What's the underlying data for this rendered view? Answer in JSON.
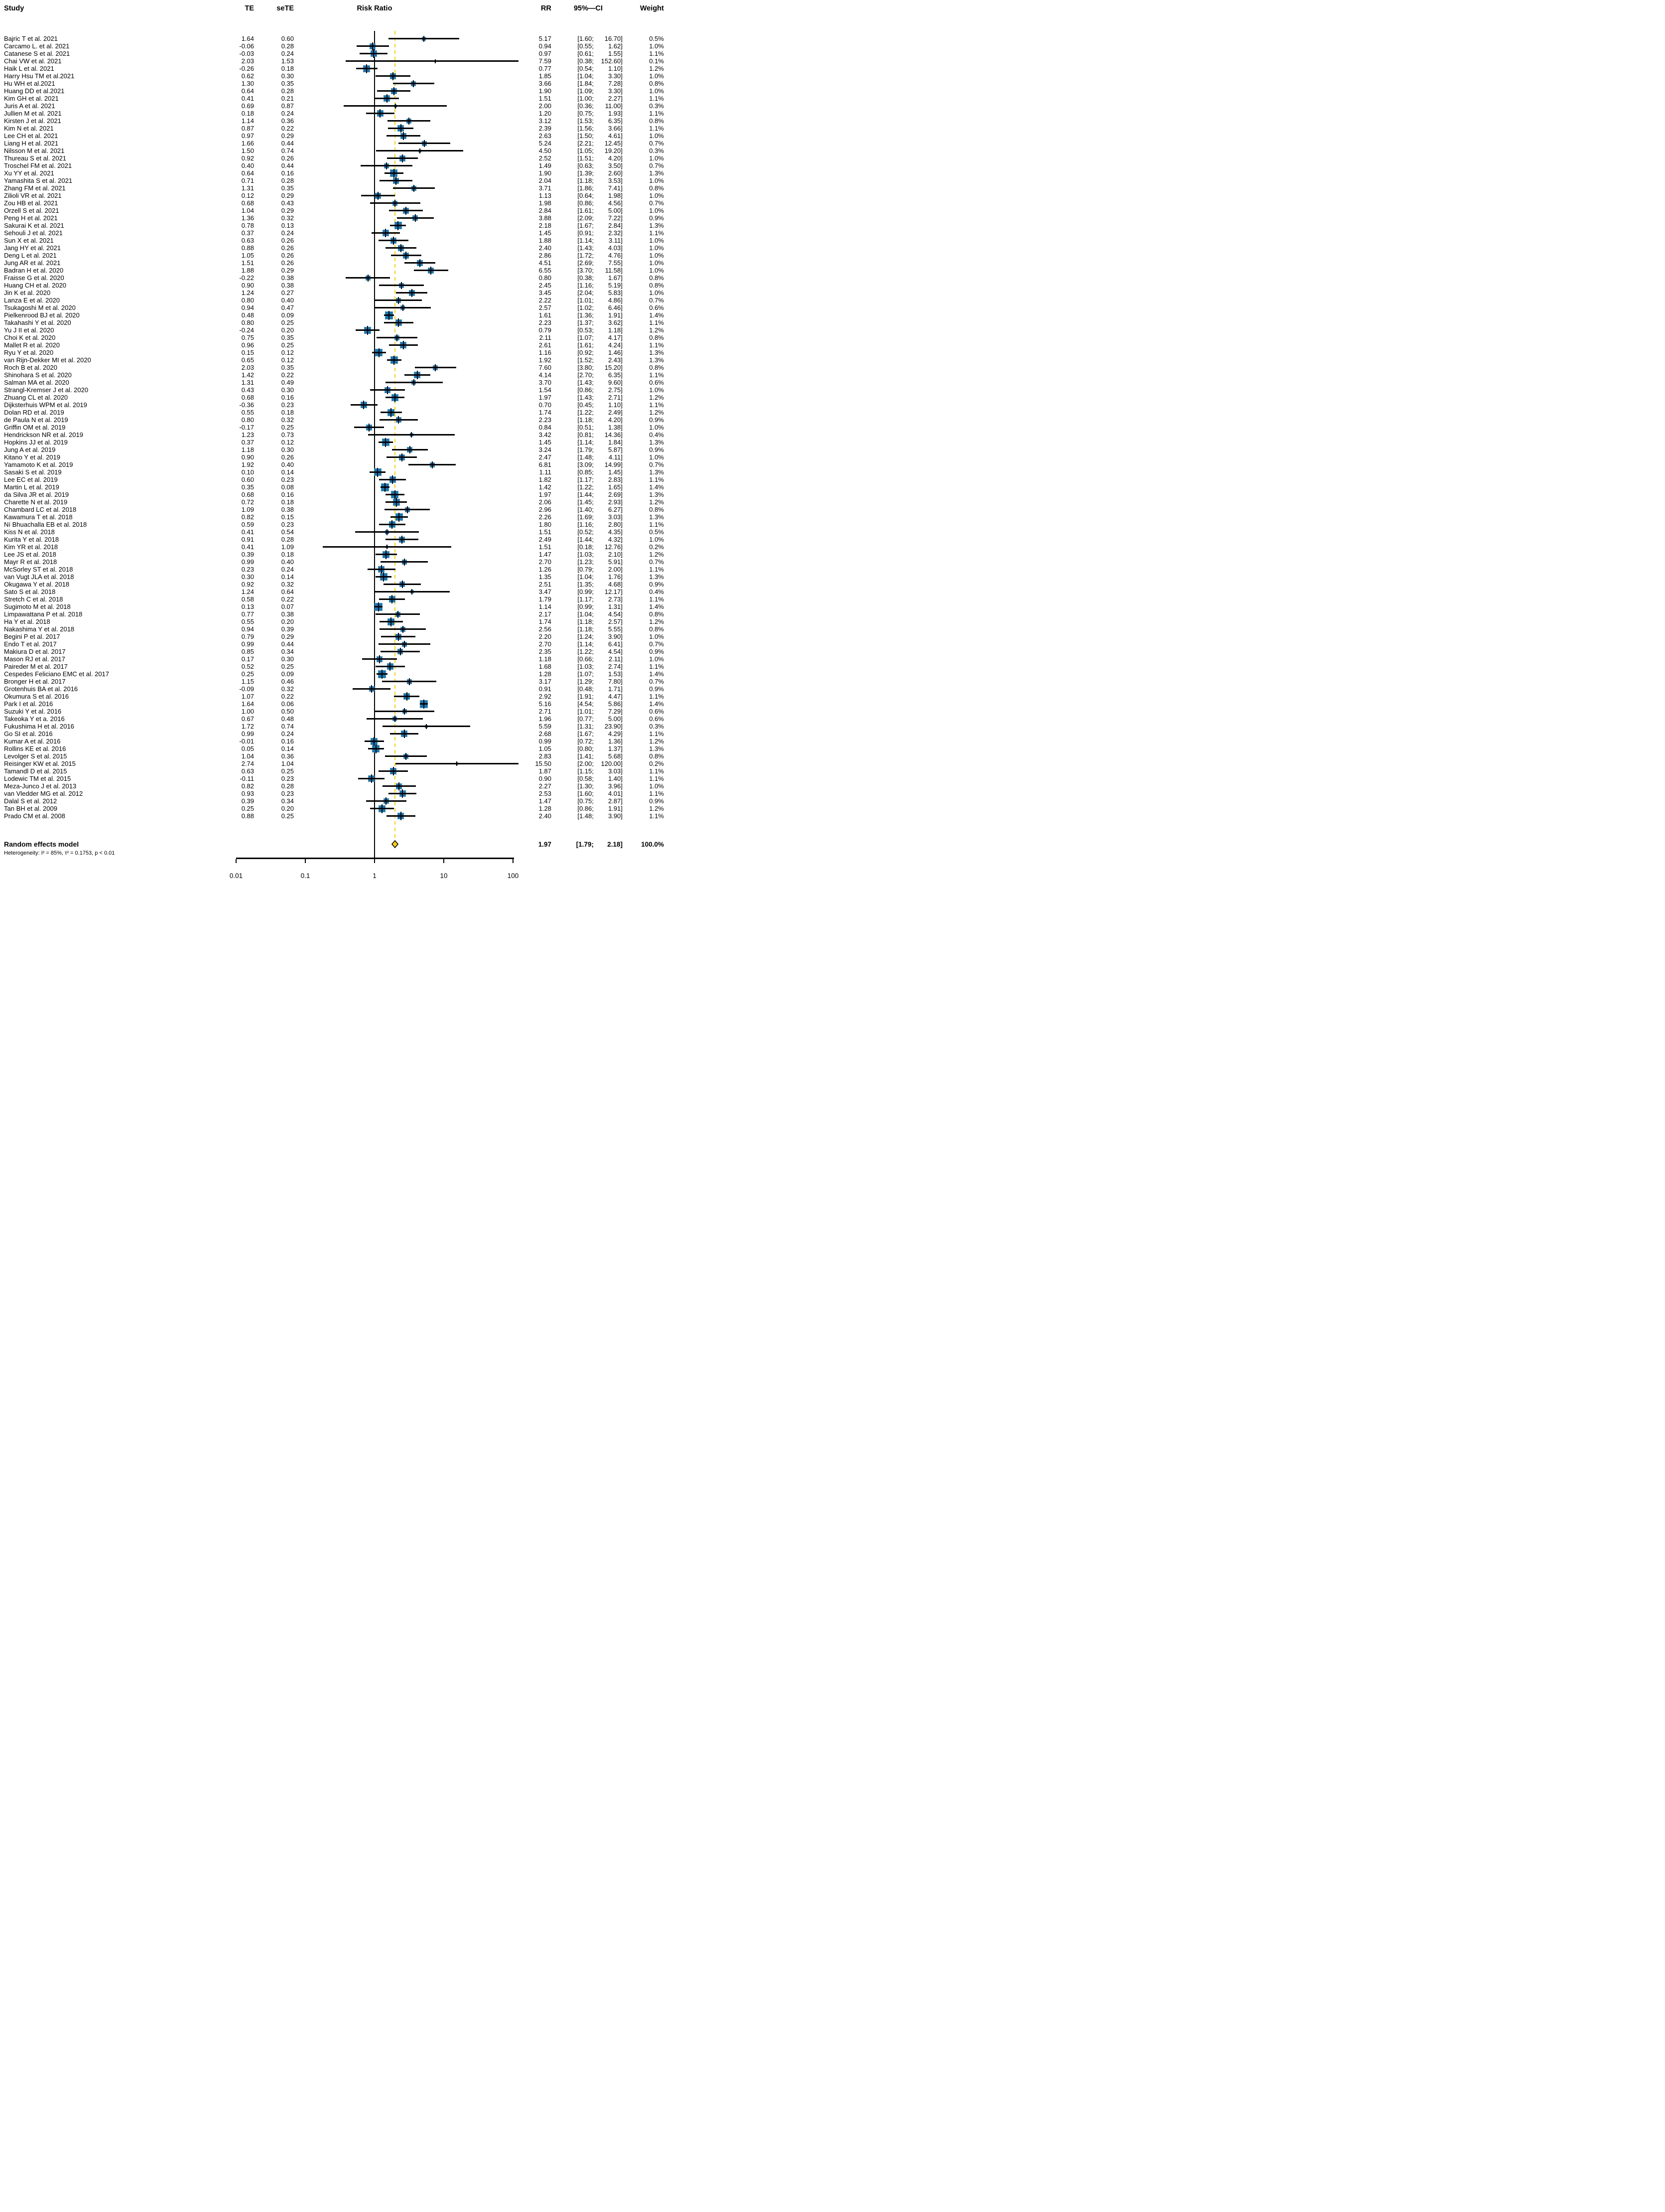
{
  "header": {
    "study": "Study",
    "te": "TE",
    "sete": "seTE",
    "risk_ratio": "Risk Ratio",
    "rr": "RR",
    "ci": "95%—CI",
    "weight": "Weight"
  },
  "chart_data": {
    "type": "scatter",
    "subtype": "forest-plot-meta-analysis",
    "x_axis": {
      "scale": "log10",
      "range": [
        0.01,
        100
      ],
      "ticks": [
        "0.01",
        "0.1",
        "1",
        "10",
        "100"
      ],
      "null_line": 1
    },
    "legend_position": "none",
    "grid": false,
    "pooled": {
      "label": "Random effects model",
      "rr": "1.97",
      "ci_low": "1.79",
      "ci_high": "2.18",
      "weight": "100.0%"
    },
    "heterogeneity": "Heterogeneity: I² = 85%, τ² = 0.1753, p < 0.01",
    "colors": {
      "marker_fill": "#1177b5",
      "marker_border": "#3e95c9",
      "ci_line": "#000000",
      "null_line": "#000000",
      "pooled_dashed_line": "#ffd400",
      "diamond_fill": "#ffd400",
      "diamond_border": "#000000"
    },
    "study_columns": [
      "study",
      "TE",
      "seTE",
      "RR",
      "ci_low",
      "ci_high",
      "weight"
    ],
    "studies": [
      [
        "Bajric T et al. 2021",
        "1.64",
        "0.60",
        "5.17",
        "1.60",
        "16.70",
        "0.5%"
      ],
      [
        "Carcamo L. et al. 2021",
        "-0.06",
        "0.28",
        "0.94",
        "0.55",
        "1.62",
        "1.0%"
      ],
      [
        "Catanese S et al. 2021",
        "-0.03",
        "0.24",
        "0.97",
        "0.61",
        "1.55",
        "1.1%"
      ],
      [
        "Chai VW et al. 2021",
        "2.03",
        "1.53",
        "7.59",
        "0.38",
        "152.60",
        "0.1%"
      ],
      [
        "Haik L et al. 2021",
        "-0.26",
        "0.18",
        "0.77",
        "0.54",
        "1.10",
        "1.2%"
      ],
      [
        "Harry Hsu TM et al.2021",
        "0.62",
        "0.30",
        "1.85",
        "1.04",
        "3.30",
        "1.0%"
      ],
      [
        "Hu WH et al.2021",
        "1.30",
        "0.35",
        "3.66",
        "1.84",
        "7.28",
        "0.8%"
      ],
      [
        "Huang DD et al.2021",
        "0.64",
        "0.28",
        "1.90",
        "1.09",
        "3.30",
        "1.0%"
      ],
      [
        "Kim GH et al. 2021",
        "0.41",
        "0.21",
        "1.51",
        "1.00",
        "2.27",
        "1.1%"
      ],
      [
        "Juris A et al. 2021",
        "0.69",
        "0.87",
        "2.00",
        "0.36",
        "11.00",
        "0.3%"
      ],
      [
        "Jullien M et al. 2021",
        "0.18",
        "0.24",
        "1.20",
        "0.75",
        "1.93",
        "1.1%"
      ],
      [
        "Kirsten J et al. 2021",
        "1.14",
        "0.36",
        "3.12",
        "1.53",
        "6.35",
        "0.8%"
      ],
      [
        "Kim N et al. 2021",
        "0.87",
        "0.22",
        "2.39",
        "1.56",
        "3.66",
        "1.1%"
      ],
      [
        "Lee CH et al. 2021",
        "0.97",
        "0.29",
        "2.63",
        "1.50",
        "4.61",
        "1.0%"
      ],
      [
        "Liang H et al. 2021",
        "1.66",
        "0.44",
        "5.24",
        "2.21",
        "12.45",
        "0.7%"
      ],
      [
        "Nilsson M et al. 2021",
        "1.50",
        "0.74",
        "4.50",
        "1.05",
        "19.20",
        "0.3%"
      ],
      [
        "Thureau S et al. 2021",
        "0.92",
        "0.26",
        "2.52",
        "1.51",
        "4.20",
        "1.0%"
      ],
      [
        "Troschel FM et al. 2021",
        "0.40",
        "0.44",
        "1.49",
        "0.63",
        "3.50",
        "0.7%"
      ],
      [
        "Xu YY et al. 2021",
        "0.64",
        "0.16",
        "1.90",
        "1.39",
        "2.60",
        "1.3%"
      ],
      [
        "Yamashita S et al. 2021",
        "0.71",
        "0.28",
        "2.04",
        "1.18",
        "3.53",
        "1.0%"
      ],
      [
        "Zhang FM et al. 2021",
        "1.31",
        "0.35",
        "3.71",
        "1.86",
        "7.41",
        "0.8%"
      ],
      [
        "Zilioli VR et al. 2021",
        "0.12",
        "0.29",
        "1.13",
        "0.64",
        "1.98",
        "1.0%"
      ],
      [
        "Zou HB et al. 2021",
        "0.68",
        "0.43",
        "1.98",
        "0.86",
        "4.56",
        "0.7%"
      ],
      [
        "Orzell S et al. 2021",
        "1.04",
        "0.29",
        "2.84",
        "1.61",
        "5.00",
        "1.0%"
      ],
      [
        "Peng H et al. 2021",
        "1.36",
        "0.32",
        "3.88",
        "2.09",
        "7.22",
        "0.9%"
      ],
      [
        "Sakurai K et al. 2021",
        "0.78",
        "0.13",
        "2.18",
        "1.67",
        "2.84",
        "1.3%"
      ],
      [
        "Sehouli J et al. 2021",
        "0.37",
        "0.24",
        "1.45",
        "0.91",
        "2.32",
        "1.1%"
      ],
      [
        "Sun X et al. 2021",
        "0.63",
        "0.26",
        "1.88",
        "1.14",
        "3.11",
        "1.0%"
      ],
      [
        "Jang HY et al. 2021",
        "0.88",
        "0.26",
        "2.40",
        "1.43",
        "4.03",
        "1.0%"
      ],
      [
        "Deng L et al. 2021",
        "1.05",
        "0.26",
        "2.86",
        "1.72",
        "4.76",
        "1.0%"
      ],
      [
        "Jung AR et al. 2021",
        "1.51",
        "0.26",
        "4.51",
        "2.69",
        "7.55",
        "1.0%"
      ],
      [
        "Badran H et al. 2020",
        "1.88",
        "0.29",
        "6.55",
        "3.70",
        "11.58",
        "1.0%"
      ],
      [
        "Fraisse G et al. 2020",
        "-0.22",
        "0.38",
        "0.80",
        "0.38",
        "1.67",
        "0.8%"
      ],
      [
        "Huang CH et al. 2020",
        "0.90",
        "0.38",
        "2.45",
        "1.16",
        "5.19",
        "0.8%"
      ],
      [
        "Jin K et al. 2020",
        "1.24",
        "0.27",
        "3.45",
        "2.04",
        "5.83",
        "1.0%"
      ],
      [
        "Lanza E et al. 2020",
        "0.80",
        "0.40",
        "2.22",
        "1.01",
        "4.86",
        "0.7%"
      ],
      [
        "Tsukagoshi M et al. 2020",
        "0.94",
        "0.47",
        "2.57",
        "1.02",
        "6.46",
        "0.6%"
      ],
      [
        "Pielkenrood BJ et al. 2020",
        "0.48",
        "0.09",
        "1.61",
        "1.36",
        "1.91",
        "1.4%"
      ],
      [
        "Takahashi Y et al. 2020",
        "0.80",
        "0.25",
        "2.23",
        "1.37",
        "3.62",
        "1.1%"
      ],
      [
        "Yu J II et al. 2020",
        "-0.24",
        "0.20",
        "0.79",
        "0.53",
        "1.18",
        "1.2%"
      ],
      [
        "Choi K et al. 2020",
        "0.75",
        "0.35",
        "2.11",
        "1.07",
        "4.17",
        "0.8%"
      ],
      [
        "Mallet R et al. 2020",
        "0.96",
        "0.25",
        "2.61",
        "1.61",
        "4.24",
        "1.1%"
      ],
      [
        "Ryu Y et al. 2020",
        "0.15",
        "0.12",
        "1.16",
        "0.92",
        "1.46",
        "1.3%"
      ],
      [
        "van Rijn-Dekker MI et al. 2020",
        "0.65",
        "0.12",
        "1.92",
        "1.52",
        "2.43",
        "1.3%"
      ],
      [
        "Roch B et al. 2020",
        "2.03",
        "0.35",
        "7.60",
        "3.80",
        "15.20",
        "0.8%"
      ],
      [
        "Shinohara S et al. 2020",
        "1.42",
        "0.22",
        "4.14",
        "2.70",
        "6.35",
        "1.1%"
      ],
      [
        "Salman MA et al. 2020",
        "1.31",
        "0.49",
        "3.70",
        "1.43",
        "9.60",
        "0.6%"
      ],
      [
        "Strangl-Kremser J et al. 2020",
        "0.43",
        "0.30",
        "1.54",
        "0.86",
        "2.75",
        "1.0%"
      ],
      [
        "Zhuang CL et al. 2020",
        "0.68",
        "0.16",
        "1.97",
        "1.43",
        "2.71",
        "1.2%"
      ],
      [
        "Dijksterhuis WPM et al. 2019",
        "-0.36",
        "0.23",
        "0.70",
        "0.45",
        "1.10",
        "1.1%"
      ],
      [
        "Dolan RD et al. 2019",
        "0.55",
        "0.18",
        "1.74",
        "1.22",
        "2.49",
        "1.2%"
      ],
      [
        "de Paula N et al. 2019",
        "0.80",
        "0.32",
        "2.23",
        "1.18",
        "4.20",
        "0.9%"
      ],
      [
        "Griffin OM et al. 2019",
        "-0.17",
        "0.25",
        "0.84",
        "0.51",
        "1.38",
        "1.0%"
      ],
      [
        "Hendrickson NR et al. 2019",
        "1.23",
        "0.73",
        "3.42",
        "0.81",
        "14.36",
        "0.4%"
      ],
      [
        "Hopkins JJ et al. 2019",
        "0.37",
        "0.12",
        "1.45",
        "1.14",
        "1.84",
        "1.3%"
      ],
      [
        "Jung A et al. 2019",
        "1.18",
        "0.30",
        "3.24",
        "1.79",
        "5.87",
        "0.9%"
      ],
      [
        "Kitano Y et al. 2019",
        "0.90",
        "0.26",
        "2.47",
        "1.48",
        "4.11",
        "1.0%"
      ],
      [
        "Yamamoto K et al. 2019",
        "1.92",
        "0.40",
        "6.81",
        "3.09",
        "14.99",
        "0.7%"
      ],
      [
        "Sasaki S et al. 2019",
        "0.10",
        "0.14",
        "1.11",
        "0.85",
        "1.45",
        "1.3%"
      ],
      [
        "Lee EC et al. 2019",
        "0.60",
        "0.23",
        "1.82",
        "1.17",
        "2.83",
        "1.1%"
      ],
      [
        "Martin L et al. 2019",
        "0.35",
        "0.08",
        "1.42",
        "1.22",
        "1.65",
        "1.4%"
      ],
      [
        "da Silva JR et al. 2019",
        "0.68",
        "0.16",
        "1.97",
        "1.44",
        "2.69",
        "1.3%"
      ],
      [
        "Charette N et al. 2019",
        "0.72",
        "0.18",
        "2.06",
        "1.45",
        "2.93",
        "1.2%"
      ],
      [
        "Chambard LC et al. 2018",
        "1.09",
        "0.38",
        "2.96",
        "1.40",
        "6.27",
        "0.8%"
      ],
      [
        "Kawamura T et al. 2018",
        "0.82",
        "0.15",
        "2.26",
        "1.69",
        "3.03",
        "1.3%"
      ],
      [
        "Ní Bhuachalla EB et al. 2018",
        "0.59",
        "0.23",
        "1.80",
        "1.16",
        "2.80",
        "1.1%"
      ],
      [
        "Kiss N et al. 2018",
        "0.41",
        "0.54",
        "1.51",
        "0.52",
        "4.35",
        "0.5%"
      ],
      [
        "Kurita Y et al. 2018",
        "0.91",
        "0.28",
        "2.49",
        "1.44",
        "4.32",
        "1.0%"
      ],
      [
        "Kim YR et al. 2018",
        "0.41",
        "1.09",
        "1.51",
        "0.18",
        "12.76",
        "0.2%"
      ],
      [
        "Lee JS et al. 2018",
        "0.39",
        "0.18",
        "1.47",
        "1.03",
        "2.10",
        "1.2%"
      ],
      [
        "Mayr R et al. 2018",
        "0.99",
        "0.40",
        "2.70",
        "1.23",
        "5.91",
        "0.7%"
      ],
      [
        "McSorley ST et al. 2018",
        "0.23",
        "0.24",
        "1.26",
        "0.79",
        "2.00",
        "1.1%"
      ],
      [
        "van Vugt JLA et al. 2018",
        "0.30",
        "0.14",
        "1.35",
        "1.04",
        "1.76",
        "1.3%"
      ],
      [
        "Okugawa Y et al. 2018",
        "0.92",
        "0.32",
        "2.51",
        "1.35",
        "4.68",
        "0.9%"
      ],
      [
        "Sato S et al. 2018",
        "1.24",
        "0.64",
        "3.47",
        "0.99",
        "12.17",
        "0.4%"
      ],
      [
        "Stretch C et al. 2018",
        "0.58",
        "0.22",
        "1.79",
        "1.17",
        "2.73",
        "1.1%"
      ],
      [
        "Sugimoto M et al. 2018",
        "0.13",
        "0.07",
        "1.14",
        "0.99",
        "1.31",
        "1.4%"
      ],
      [
        "Limpawattana P et al. 2018",
        "0.77",
        "0.38",
        "2.17",
        "1.04",
        "4.54",
        "0.8%"
      ],
      [
        "Ha Y et al. 2018",
        "0.55",
        "0.20",
        "1.74",
        "1.18",
        "2.57",
        "1.2%"
      ],
      [
        "Nakashima Y et al. 2018",
        "0.94",
        "0.39",
        "2.56",
        "1.18",
        "5.55",
        "0.8%"
      ],
      [
        "Begini P et al. 2017",
        "0.79",
        "0.29",
        "2.20",
        "1.24",
        "3.90",
        "1.0%"
      ],
      [
        "Endo T et al. 2017",
        "0.99",
        "0.44",
        "2.70",
        "1.14",
        "6.41",
        "0.7%"
      ],
      [
        "Makiura D et al. 2017",
        "0.85",
        "0.34",
        "2.35",
        "1.22",
        "4.54",
        "0.9%"
      ],
      [
        "Mason RJ et al. 2017",
        "0.17",
        "0.30",
        "1.18",
        "0.66",
        "2.11",
        "1.0%"
      ],
      [
        "Paireder M et al. 2017",
        "0.52",
        "0.25",
        "1.68",
        "1.03",
        "2.74",
        "1.1%"
      ],
      [
        "Cespedes Feliciano EMC et al. 2017",
        "0.25",
        "0.09",
        "1.28",
        "1.07",
        "1.53",
        "1.4%"
      ],
      [
        "Bronger H et al. 2017",
        "1.15",
        "0.46",
        "3.17",
        "1.29",
        "7.80",
        "0.7%"
      ],
      [
        "Grotenhuis BA et al. 2016",
        "-0.09",
        "0.32",
        "0.91",
        "0.48",
        "1.71",
        "0.9%"
      ],
      [
        "Okumura S et al. 2016",
        "1.07",
        "0.22",
        "2.92",
        "1.91",
        "4.47",
        "1.1%"
      ],
      [
        "Park I et al. 2016",
        "1.64",
        "0.06",
        "5.16",
        "4.54",
        "5.86",
        "1.4%"
      ],
      [
        "Suzuki Y et al. 2016",
        "1.00",
        "0.50",
        "2.71",
        "1.01",
        "7.29",
        "0.6%"
      ],
      [
        "Takeoka Y et a. 2016",
        "0.67",
        "0.48",
        "1.96",
        "0.77",
        "5.00",
        "0.6%"
      ],
      [
        "Fukushima H et al. 2016",
        "1.72",
        "0.74",
        "5.59",
        "1.31",
        "23.90",
        "0.3%"
      ],
      [
        "Go SI et al. 2016",
        "0.99",
        "0.24",
        "2.68",
        "1.67",
        "4.29",
        "1.1%"
      ],
      [
        "Kumar A et al. 2016",
        "-0.01",
        "0.16",
        "0.99",
        "0.72",
        "1.36",
        "1.2%"
      ],
      [
        "Rollins KE et al. 2016",
        "0.05",
        "0.14",
        "1.05",
        "0.80",
        "1.37",
        "1.3%"
      ],
      [
        "Levolger S et al. 2015",
        "1.04",
        "0.36",
        "2.83",
        "1.41",
        "5.68",
        "0.8%"
      ],
      [
        "Reisinger KW et al. 2015",
        "2.74",
        "1.04",
        "15.50",
        "2.00",
        "120.00",
        "0.2%"
      ],
      [
        "Tamandl D et al. 2015",
        "0.63",
        "0.25",
        "1.87",
        "1.15",
        "3.03",
        "1.1%"
      ],
      [
        "Lodewic TM et al. 2015",
        "-0.11",
        "0.23",
        "0.90",
        "0.58",
        "1.40",
        "1.1%"
      ],
      [
        "Meza-Junco J et al. 2013",
        "0.82",
        "0.28",
        "2.27",
        "1.30",
        "3.96",
        "1.0%"
      ],
      [
        "van Vledder MG et al. 2012",
        "0.93",
        "0.23",
        "2.53",
        "1.60",
        "4.01",
        "1.1%"
      ],
      [
        "Dalal S et al. 2012",
        "0.39",
        "0.34",
        "1.47",
        "0.75",
        "2.87",
        "0.9%"
      ],
      [
        "Tan BH et al. 2009",
        "0.25",
        "0.20",
        "1.28",
        "0.86",
        "1.91",
        "1.2%"
      ],
      [
        "Prado CM et al. 2008",
        "0.88",
        "0.25",
        "2.40",
        "1.48",
        "3.90",
        "1.1%"
      ]
    ]
  }
}
